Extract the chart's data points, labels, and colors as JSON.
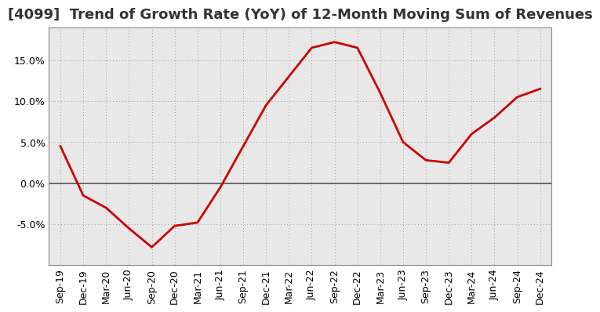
{
  "title": "[4099]  Trend of Growth Rate (YoY) of 12-Month Moving Sum of Revenues",
  "x_labels": [
    "Sep-19",
    "Dec-19",
    "Mar-20",
    "Jun-20",
    "Sep-20",
    "Dec-20",
    "Mar-21",
    "Jun-21",
    "Sep-21",
    "Dec-21",
    "Mar-22",
    "Jun-22",
    "Sep-22",
    "Dec-22",
    "Mar-23",
    "Jun-23",
    "Sep-23",
    "Dec-23",
    "Mar-24",
    "Jun-24",
    "Sep-24",
    "Dec-24"
  ],
  "y_values": [
    4.5,
    -1.5,
    -3.0,
    -5.5,
    -7.8,
    -5.2,
    -4.8,
    -0.5,
    4.5,
    9.5,
    13.0,
    16.5,
    17.2,
    16.5,
    11.0,
    5.0,
    2.8,
    2.5,
    6.0,
    8.0,
    10.5,
    11.5
  ],
  "line_color": "#cc0000",
  "line_width": 2.0,
  "background_color": "#ffffff",
  "plot_background": "#e8e8e8",
  "grid_color": "#999999",
  "zero_line_color": "#555555",
  "ylim": [
    -10.0,
    19.0
  ],
  "yticks": [
    -5.0,
    0.0,
    5.0,
    10.0,
    15.0
  ],
  "title_fontsize": 13,
  "tick_fontsize": 9
}
